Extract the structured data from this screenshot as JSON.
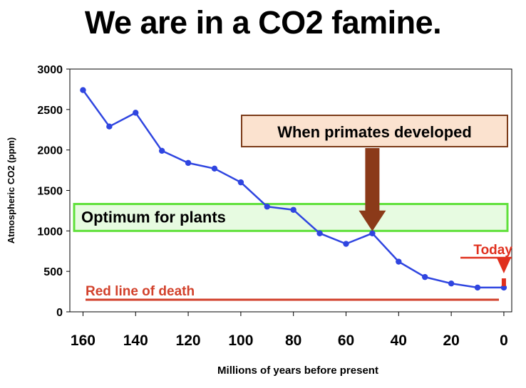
{
  "page_title": "We are in a CO2 famine.",
  "colors": {
    "series": "#2f45e0",
    "optimum_fill": "#e7fbe1",
    "optimum_border": "#5fe03a",
    "primates_box_fill": "#fbe2cf",
    "primates_box_border": "#7b3a18",
    "primates_arrow": "#8b3a19",
    "red_line": "#d2412b",
    "today": "#e0301e"
  },
  "chart_data": {
    "type": "line",
    "title": "We are in a CO2 famine.",
    "xlabel": "Millions of years before present",
    "ylabel": "Atmospheric CO2 (ppm)",
    "xlim": [
      165,
      -3
    ],
    "x_reversed": true,
    "ylim": [
      0,
      3000
    ],
    "grid": false,
    "xticks": [
      160,
      140,
      120,
      100,
      80,
      60,
      40,
      20,
      0
    ],
    "yticks": [
      0,
      500,
      1000,
      1500,
      2000,
      2500,
      3000
    ],
    "series": [
      {
        "x": [
          160,
          150,
          140,
          130,
          120,
          110,
          100,
          90,
          80,
          70,
          60,
          50,
          40,
          30,
          20,
          10,
          0
        ],
        "y": [
          2740,
          2290,
          2460,
          1990,
          1840,
          1770,
          1600,
          1300,
          1260,
          970,
          840,
          970,
          620,
          430,
          350,
          300,
          300
        ]
      }
    ],
    "annotations": {
      "optimum": {
        "label": "Optimum for plants",
        "y_range": [
          1000,
          1350
        ]
      },
      "primates": {
        "label": "When primates developed",
        "x": 50,
        "y": 970
      },
      "red_line": {
        "label": "Red line of death",
        "y": 150
      },
      "today": {
        "label": "Today",
        "x": 0,
        "y": 300
      }
    }
  }
}
